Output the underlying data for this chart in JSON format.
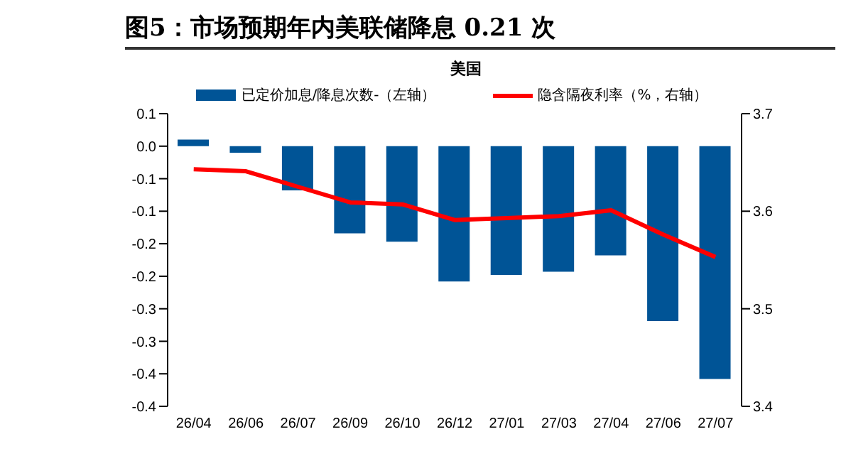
{
  "chart_data": {
    "type": "bar",
    "title": "图5：市场预期年内美联储降息 0.21 次",
    "subtitle": "美国",
    "categories": [
      "26/04",
      "26/06",
      "26/07",
      "26/09",
      "26/10",
      "26/12",
      "27/01",
      "27/03",
      "27/04",
      "27/06",
      "27/07"
    ],
    "series": [
      {
        "name": "已定价加息/降息次数-（左轴）",
        "color": "#005496",
        "values": [
          0.01,
          -0.01,
          -0.068,
          -0.134,
          -0.147,
          -0.208,
          -0.198,
          -0.193,
          -0.168,
          -0.269,
          -0.358
        ]
      },
      {
        "name": "隐含隔夜利率（%，右轴）",
        "type": "line",
        "axis": "y2",
        "color": "#ff0000",
        "values": [
          3.643,
          3.641,
          3.625,
          3.609,
          3.607,
          3.591,
          3.593,
          3.595,
          3.601,
          3.576,
          3.553
        ]
      }
    ],
    "ylim": [
      -0.4,
      0.05
    ],
    "yticks": [
      {
        "value": 0.05,
        "label": "0.1"
      },
      {
        "value": 0,
        "label": "0.0"
      },
      {
        "value": -0.05,
        "label": "-0.1"
      },
      {
        "value": -0.1,
        "label": "-0.1"
      },
      {
        "value": -0.15,
        "label": "-0.2"
      },
      {
        "value": -0.2,
        "label": "-0.2"
      },
      {
        "value": -0.25,
        "label": "-0.3"
      },
      {
        "value": -0.3,
        "label": "-0.3"
      },
      {
        "value": -0.35,
        "label": "-0.4"
      },
      {
        "value": -0.4,
        "label": "-0.4"
      }
    ],
    "y2lim": [
      3.4,
      3.7
    ],
    "y2ticks": [
      3.4,
      3.5,
      3.6,
      3.7
    ],
    "legend": "top",
    "grid": false,
    "marker": "none",
    "line_style": "solid"
  }
}
